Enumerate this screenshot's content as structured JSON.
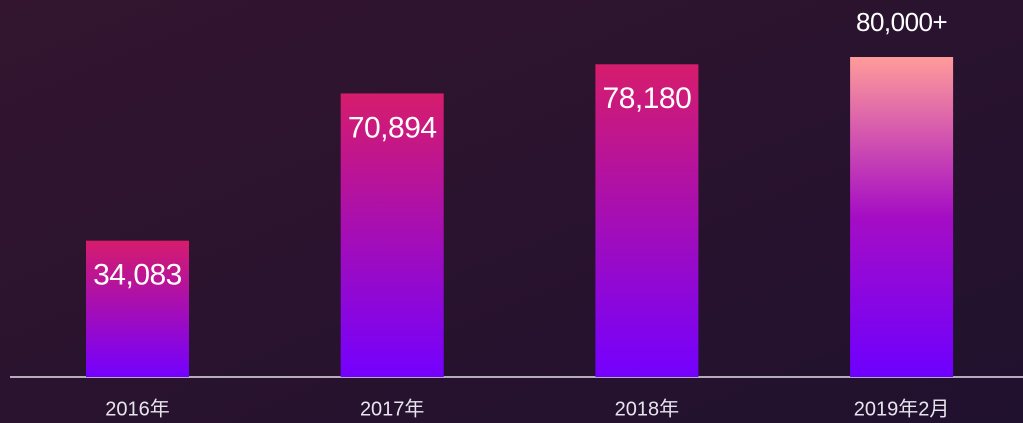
{
  "chart_data": {
    "type": "bar",
    "categories": [
      "2016年",
      "2017年",
      "2018年",
      "2019年2月"
    ],
    "values": [
      34083,
      70894,
      78180,
      80000
    ],
    "value_labels": [
      "34,083",
      "70,894",
      "78,180",
      "80,000+"
    ]
  }
}
